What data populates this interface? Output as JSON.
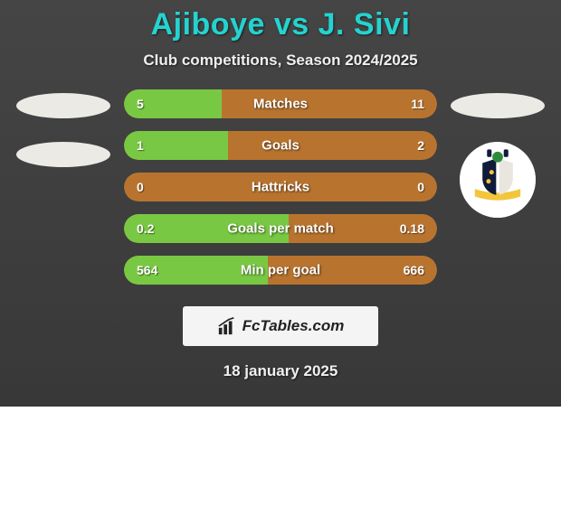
{
  "title": "Ajiboye vs J. Sivi",
  "subtitle": "Club competitions, Season 2024/2025",
  "date": "18 january 2025",
  "logo_text": "FcTables.com",
  "colors": {
    "card_bg_top": "#454545",
    "card_bg_bottom": "#383838",
    "title_color": "#24d3cf",
    "text_color": "#f0f0f0",
    "oval_color": "#eceae4",
    "logo_bg": "#f4f4f4"
  },
  "bars": [
    {
      "label": "Matches",
      "left_value": "5",
      "right_value": "11",
      "left_num": 5,
      "right_num": 11,
      "fill_pct": 31.25,
      "left_color": "#79c843",
      "track_color": "#b8742f"
    },
    {
      "label": "Goals",
      "left_value": "1",
      "right_value": "2",
      "left_num": 1,
      "right_num": 2,
      "fill_pct": 33.3,
      "left_color": "#79c843",
      "track_color": "#b8742f"
    },
    {
      "label": "Hattricks",
      "left_value": "0",
      "right_value": "0",
      "left_num": 0,
      "right_num": 0,
      "fill_pct": 0,
      "left_color": "#79c843",
      "track_color": "#b8742f"
    },
    {
      "label": "Goals per match",
      "left_value": "0.2",
      "right_value": "0.18",
      "left_num": 0.2,
      "right_num": 0.18,
      "fill_pct": 52.6,
      "left_color": "#79c843",
      "track_color": "#b8742f"
    },
    {
      "label": "Min per goal",
      "left_value": "564",
      "right_value": "666",
      "left_num": 564,
      "right_num": 666,
      "fill_pct": 45.9,
      "left_color": "#79c843",
      "track_color": "#b8742f"
    }
  ],
  "crest": {
    "ribbon_color": "#f3c53b",
    "shield_left": "#101a3a",
    "shield_right": "#e8e6df",
    "accent_green": "#2e8b3d"
  }
}
